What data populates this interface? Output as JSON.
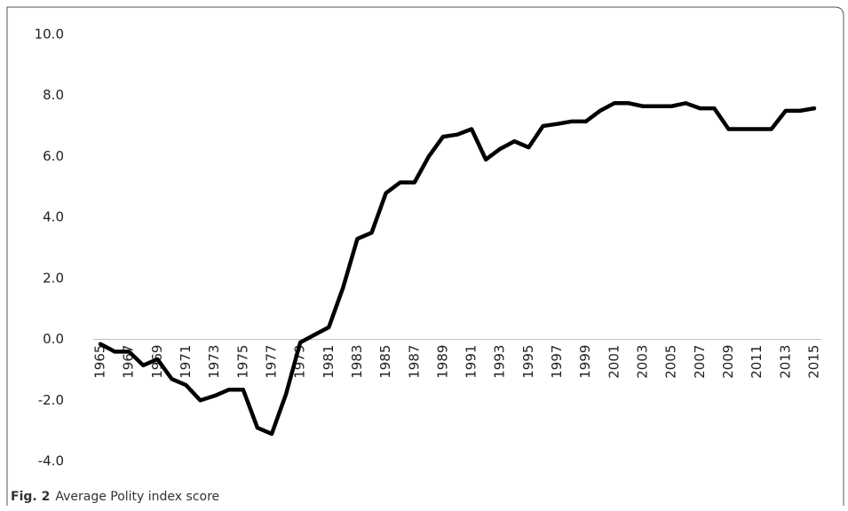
{
  "chart_data": {
    "type": "line",
    "caption": {
      "label": "Fig. 2",
      "text": "Average Polity index score"
    },
    "categories": [
      "1965",
      null,
      "1967",
      null,
      "1969",
      null,
      "1971",
      null,
      "1973",
      null,
      "1975",
      null,
      "1977",
      null,
      "1979",
      null,
      "1981",
      null,
      "1983",
      null,
      "1985",
      null,
      "1987",
      null,
      "1989",
      null,
      "1991",
      null,
      "1993",
      null,
      "1995",
      null,
      "1997",
      null,
      "1999",
      null,
      "2001",
      null,
      "2003",
      null,
      "2005",
      null,
      "2007",
      null,
      "2009",
      null,
      "2011",
      null,
      "2013",
      null,
      "2015"
    ],
    "values": [
      -0.15,
      -0.4,
      -0.4,
      -0.85,
      -0.65,
      -1.3,
      -1.5,
      -2.0,
      -1.85,
      -1.65,
      -1.65,
      -2.9,
      -3.1,
      -1.8,
      -0.1,
      0.15,
      0.4,
      1.7,
      3.3,
      3.5,
      4.8,
      5.15,
      5.15,
      6.0,
      6.65,
      6.72,
      6.9,
      5.9,
      6.25,
      6.5,
      6.3,
      7.0,
      7.07,
      7.15,
      7.15,
      7.5,
      7.75,
      7.75,
      7.65,
      7.65,
      7.65,
      7.75,
      7.58,
      7.58,
      6.9,
      6.9,
      6.9,
      6.9,
      7.5,
      7.5,
      7.58
    ],
    "color": "#000000",
    "ylim": [
      -4,
      10
    ],
    "yticks": [
      {
        "value": -4,
        "label": "-4.0"
      },
      {
        "value": -2,
        "label": "-2.0"
      },
      {
        "value": 0,
        "label": "0.0"
      },
      {
        "value": 2,
        "label": "2.0"
      },
      {
        "value": 4,
        "label": "4.0"
      },
      {
        "value": 6,
        "label": "6.0"
      },
      {
        "value": 8,
        "label": "8.0"
      },
      {
        "value": 10,
        "label": "10.0"
      }
    ],
    "grid": false
  }
}
